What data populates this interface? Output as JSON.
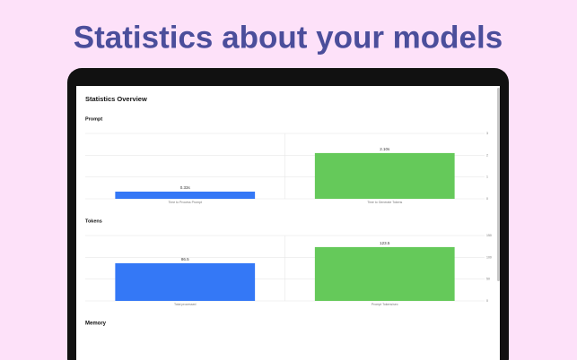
{
  "headline": "Statistics about your models",
  "screen_title": "Statistics Overview",
  "section_after": "Memory",
  "chart_data": [
    {
      "type": "bar",
      "title": "Prompt",
      "categories": [
        "Time to Process Prompt",
        "Time to Generate Tokens"
      ],
      "values": [
        0.33,
        2.1
      ],
      "value_labels": [
        "0.33s",
        "2.10s"
      ],
      "colors": [
        "#3478f6",
        "#65c95a"
      ],
      "ylim": [
        0,
        3
      ],
      "yticks": [
        0,
        1,
        2,
        3
      ],
      "grid": true
    },
    {
      "type": "bar",
      "title": "Tokens",
      "categories": [
        "Total processed",
        "Prompt Tokens/sec"
      ],
      "values": [
        86.5,
        123.5
      ],
      "value_labels": [
        "86.5",
        "123.5"
      ],
      "colors": [
        "#3478f6",
        "#65c95a"
      ],
      "ylim": [
        0,
        150
      ],
      "yticks": [
        0,
        50,
        100,
        150
      ],
      "grid": true
    }
  ]
}
